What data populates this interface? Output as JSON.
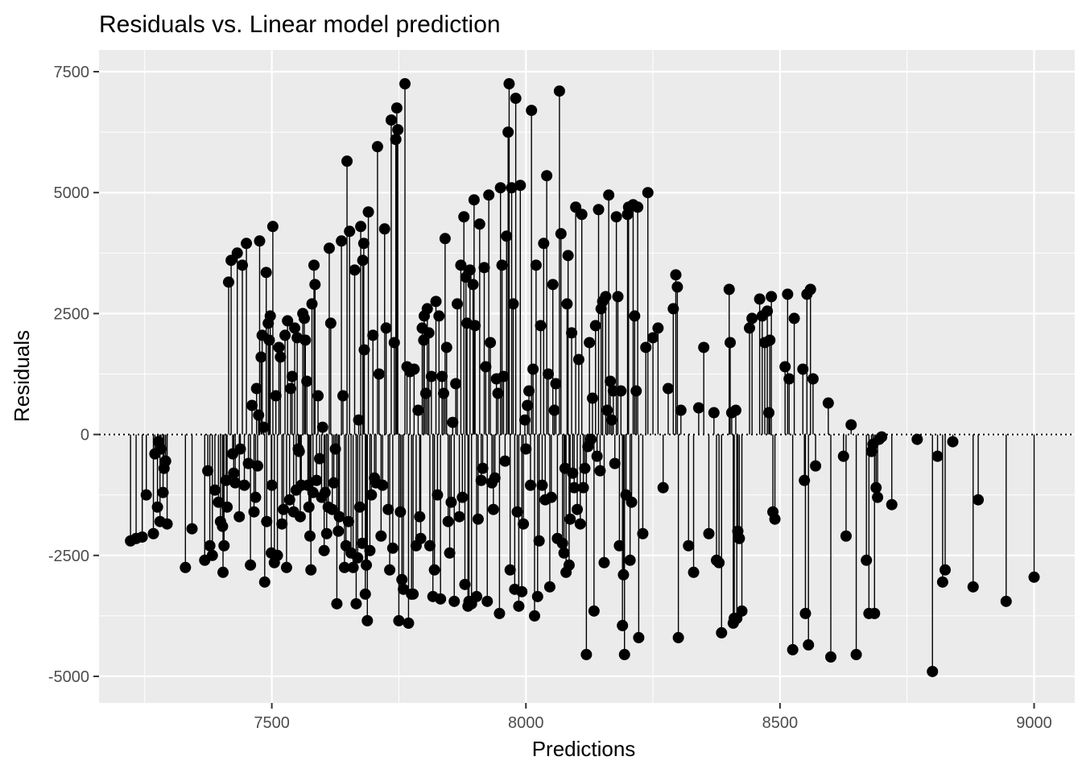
{
  "chart_data": {
    "type": "scatter",
    "title": "Residuals vs. Linear model prediction",
    "xlabel": "Predictions",
    "ylabel": "Residuals",
    "xlim": [
      7160,
      9080
    ],
    "ylim": [
      -5550,
      7950
    ],
    "x_ticks": [
      7500,
      8000,
      8500,
      9000
    ],
    "x_tick_labels": [
      "7500",
      "8000",
      "8500",
      "9000"
    ],
    "y_ticks": [
      7500,
      5000,
      2500,
      0,
      -2500,
      -5000
    ],
    "y_tick_labels": [
      "7500",
      "5000",
      "2500",
      "0",
      "-2500",
      "-5000"
    ],
    "grid": true,
    "reference_line": {
      "y": 0,
      "style": "dotted"
    },
    "mark_style": "lollipop",
    "colors": {
      "panel": "#ebebeb",
      "grid": "#ffffff",
      "points": "#000000"
    },
    "points": [
      [
        7222,
        -2200
      ],
      [
        7233,
        -2150
      ],
      [
        7245,
        -2120
      ],
      [
        7253,
        -1250
      ],
      [
        7267,
        -2050
      ],
      [
        7270,
        -400
      ],
      [
        7275,
        -1500
      ],
      [
        7277,
        -150
      ],
      [
        7280,
        -1800
      ],
      [
        7282,
        -300
      ],
      [
        7286,
        -1200
      ],
      [
        7288,
        -700
      ],
      [
        7291,
        -550
      ],
      [
        7294,
        -1850
      ],
      [
        7330,
        -2750
      ],
      [
        7343,
        -1950
      ],
      [
        7368,
        -2600
      ],
      [
        7374,
        -750
      ],
      [
        7378,
        -2300
      ],
      [
        7383,
        -2500
      ],
      [
        7388,
        -1150
      ],
      [
        7395,
        -1400
      ],
      [
        7399,
        -1800
      ],
      [
        7403,
        -1900
      ],
      [
        7404,
        -2850
      ],
      [
        7406,
        -2300
      ],
      [
        7410,
        -950
      ],
      [
        7412,
        -1500
      ],
      [
        7415,
        3150
      ],
      [
        7420,
        3600
      ],
      [
        7423,
        -400
      ],
      [
        7425,
        -800
      ],
      [
        7428,
        -1000
      ],
      [
        7432,
        3750
      ],
      [
        7436,
        -1700
      ],
      [
        7438,
        -300
      ],
      [
        7442,
        3500
      ],
      [
        7446,
        -1050
      ],
      [
        7450,
        3950
      ],
      [
        7454,
        -600
      ],
      [
        7458,
        -2700
      ],
      [
        7461,
        600
      ],
      [
        7465,
        -1600
      ],
      [
        7468,
        -1300
      ],
      [
        7470,
        950
      ],
      [
        7472,
        -650
      ],
      [
        7474,
        400
      ],
      [
        7476,
        4000
      ],
      [
        7479,
        1600
      ],
      [
        7481,
        2050
      ],
      [
        7484,
        150
      ],
      [
        7486,
        -3050
      ],
      [
        7489,
        3350
      ],
      [
        7490,
        -1800
      ],
      [
        7493,
        2300
      ],
      [
        7495,
        1950
      ],
      [
        7497,
        2450
      ],
      [
        7499,
        -2450
      ],
      [
        7500,
        -1050
      ],
      [
        7502,
        4300
      ],
      [
        7505,
        -2650
      ],
      [
        7508,
        800
      ],
      [
        7511,
        -2500
      ],
      [
        7514,
        1800
      ],
      [
        7517,
        1600
      ],
      [
        7520,
        -1850
      ],
      [
        7523,
        -1550
      ],
      [
        7526,
        2050
      ],
      [
        7529,
        -2750
      ],
      [
        7531,
        2350
      ],
      [
        7535,
        -1350
      ],
      [
        7537,
        950
      ],
      [
        7540,
        1200
      ],
      [
        7543,
        -1600
      ],
      [
        7545,
        2200
      ],
      [
        7548,
        -1150
      ],
      [
        7550,
        2000
      ],
      [
        7552,
        -300
      ],
      [
        7554,
        -350
      ],
      [
        7556,
        -1700
      ],
      [
        7558,
        -1050
      ],
      [
        7561,
        2500
      ],
      [
        7564,
        2400
      ],
      [
        7566,
        1950
      ],
      [
        7569,
        1100
      ],
      [
        7571,
        -1050
      ],
      [
        7573,
        -1500
      ],
      [
        7575,
        -2100
      ],
      [
        7577,
        -2800
      ],
      [
        7579,
        2700
      ],
      [
        7581,
        -1200
      ],
      [
        7583,
        3500
      ],
      [
        7585,
        3100
      ],
      [
        7588,
        -950
      ],
      [
        7591,
        800
      ],
      [
        7594,
        -500
      ],
      [
        7598,
        -1300
      ],
      [
        7600,
        150
      ],
      [
        7603,
        -2400
      ],
      [
        7605,
        -1200
      ],
      [
        7608,
        -2050
      ],
      [
        7611,
        -1500
      ],
      [
        7613,
        3850
      ],
      [
        7616,
        2300
      ],
      [
        7619,
        -1550
      ],
      [
        7622,
        -1000
      ],
      [
        7625,
        -300
      ],
      [
        7628,
        -3500
      ],
      [
        7631,
        -2000
      ],
      [
        7633,
        -1700
      ],
      [
        7637,
        4000
      ],
      [
        7640,
        800
      ],
      [
        7643,
        -2750
      ],
      [
        7646,
        -2300
      ],
      [
        7648,
        5650
      ],
      [
        7651,
        -1800
      ],
      [
        7653,
        4200
      ],
      [
        7656,
        -2450
      ],
      [
        7660,
        -2750
      ],
      [
        7663,
        3400
      ],
      [
        7666,
        -3500
      ],
      [
        7669,
        -2550
      ],
      [
        7671,
        300
      ],
      [
        7673,
        -1500
      ],
      [
        7675,
        4300
      ],
      [
        7678,
        -2250
      ],
      [
        7679,
        3600
      ],
      [
        7681,
        3950
      ],
      [
        7682,
        1750
      ],
      [
        7684,
        -3300
      ],
      [
        7686,
        -2700
      ],
      [
        7688,
        -3850
      ],
      [
        7690,
        4600
      ],
      [
        7693,
        -2400
      ],
      [
        7696,
        -1250
      ],
      [
        7699,
        2050
      ],
      [
        7702,
        -900
      ],
      [
        7705,
        -1000
      ],
      [
        7708,
        5950
      ],
      [
        7711,
        1250
      ],
      [
        7715,
        -2100
      ],
      [
        7718,
        -1050
      ],
      [
        7722,
        4250
      ],
      [
        7725,
        2200
      ],
      [
        7729,
        -1550
      ],
      [
        7732,
        -2800
      ],
      [
        7735,
        6500
      ],
      [
        7738,
        -2350
      ],
      [
        7741,
        1900
      ],
      [
        7744,
        6100
      ],
      [
        7746,
        6750
      ],
      [
        7748,
        6300
      ],
      [
        7750,
        -3850
      ],
      [
        7753,
        -1600
      ],
      [
        7756,
        -3000
      ],
      [
        7759,
        -3200
      ],
      [
        7762,
        7250
      ],
      [
        7766,
        1400
      ],
      [
        7769,
        -3900
      ],
      [
        7772,
        1300
      ],
      [
        7775,
        -3300
      ],
      [
        7778,
        -3300
      ],
      [
        7780,
        1350
      ],
      [
        7784,
        -2300
      ],
      [
        7788,
        500
      ],
      [
        7791,
        -1700
      ],
      [
        7793,
        -2150
      ],
      [
        7796,
        2200
      ],
      [
        7799,
        1950
      ],
      [
        7800,
        2450
      ],
      [
        7803,
        850
      ],
      [
        7806,
        2600
      ],
      [
        7809,
        2100
      ],
      [
        7811,
        -2300
      ],
      [
        7814,
        1200
      ],
      [
        7817,
        -3350
      ],
      [
        7820,
        -2800
      ],
      [
        7823,
        2750
      ],
      [
        7826,
        -1250
      ],
      [
        7829,
        2450
      ],
      [
        7832,
        -3400
      ],
      [
        7835,
        1200
      ],
      [
        7838,
        850
      ],
      [
        7841,
        4050
      ],
      [
        7844,
        1800
      ],
      [
        7847,
        -1800
      ],
      [
        7850,
        -2450
      ],
      [
        7853,
        -1400
      ],
      [
        7856,
        250
      ],
      [
        7859,
        -3450
      ],
      [
        7862,
        1050
      ],
      [
        7865,
        2700
      ],
      [
        7869,
        -1700
      ],
      [
        7872,
        3500
      ],
      [
        7875,
        -1300
      ],
      [
        7878,
        4500
      ],
      [
        7880,
        -3100
      ],
      [
        7882,
        3250
      ],
      [
        7884,
        2300
      ],
      [
        7886,
        -3550
      ],
      [
        7888,
        -3450
      ],
      [
        7890,
        3400
      ],
      [
        7893,
        -3500
      ],
      [
        7896,
        3100
      ],
      [
        7898,
        4850
      ],
      [
        7900,
        2250
      ],
      [
        7903,
        -3350
      ],
      [
        7906,
        -1750
      ],
      [
        7909,
        4350
      ],
      [
        7912,
        -950
      ],
      [
        7915,
        -700
      ],
      [
        7918,
        3450
      ],
      [
        7921,
        1400
      ],
      [
        7924,
        -3450
      ],
      [
        7927,
        4950
      ],
      [
        7930,
        1900
      ],
      [
        7933,
        -1000
      ],
      [
        7936,
        -1550
      ],
      [
        7939,
        -900
      ],
      [
        7942,
        1150
      ],
      [
        7945,
        850
      ],
      [
        7948,
        -3700
      ],
      [
        7950,
        5100
      ],
      [
        7953,
        3500
      ],
      [
        7956,
        1200
      ],
      [
        7959,
        -550
      ],
      [
        7962,
        4100
      ],
      [
        7965,
        6250
      ],
      [
        7967,
        7250
      ],
      [
        7969,
        -2800
      ],
      [
        7972,
        5100
      ],
      [
        7975,
        2700
      ],
      [
        7978,
        -3200
      ],
      [
        7980,
        6950
      ],
      [
        7983,
        -1600
      ],
      [
        7986,
        -3550
      ],
      [
        7989,
        5150
      ],
      [
        7992,
        -3250
      ],
      [
        7995,
        -1850
      ],
      [
        7998,
        300
      ],
      [
        8000,
        -300
      ],
      [
        8003,
        600
      ],
      [
        8006,
        900
      ],
      [
        8009,
        -1050
      ],
      [
        8011,
        6700
      ],
      [
        8014,
        1350
      ],
      [
        8017,
        -3750
      ],
      [
        8020,
        3500
      ],
      [
        8023,
        -3350
      ],
      [
        8026,
        -2200
      ],
      [
        8029,
        2250
      ],
      [
        8032,
        -1050
      ],
      [
        8035,
        3950
      ],
      [
        8038,
        -1350
      ],
      [
        8041,
        5350
      ],
      [
        8044,
        1250
      ],
      [
        8047,
        -3150
      ],
      [
        8050,
        -1300
      ],
      [
        8053,
        3100
      ],
      [
        8056,
        500
      ],
      [
        8059,
        1050
      ],
      [
        8062,
        -2150
      ],
      [
        8066,
        7100
      ],
      [
        8069,
        4150
      ],
      [
        8072,
        -2250
      ],
      [
        8075,
        -2450
      ],
      [
        8077,
        -700
      ],
      [
        8079,
        -2850
      ],
      [
        8081,
        2700
      ],
      [
        8083,
        3700
      ],
      [
        8085,
        -2700
      ],
      [
        8087,
        -1750
      ],
      [
        8090,
        2100
      ],
      [
        8092,
        -800
      ],
      [
        8095,
        -1100
      ],
      [
        8098,
        4700
      ],
      [
        8101,
        -1550
      ],
      [
        8104,
        1550
      ],
      [
        8107,
        -1850
      ],
      [
        8110,
        4550
      ],
      [
        8113,
        -1100
      ],
      [
        8116,
        -700
      ],
      [
        8119,
        -4550
      ],
      [
        8122,
        -250
      ],
      [
        8125,
        1900
      ],
      [
        8128,
        -100
      ],
      [
        8131,
        750
      ],
      [
        8134,
        -3650
      ],
      [
        8137,
        2250
      ],
      [
        8140,
        -450
      ],
      [
        8143,
        4650
      ],
      [
        8146,
        -750
      ],
      [
        8148,
        2600
      ],
      [
        8151,
        2750
      ],
      [
        8154,
        -2650
      ],
      [
        8157,
        2850
      ],
      [
        8160,
        500
      ],
      [
        8163,
        4950
      ],
      [
        8166,
        1100
      ],
      [
        8169,
        300
      ],
      [
        8172,
        900
      ],
      [
        8175,
        -600
      ],
      [
        8178,
        4500
      ],
      [
        8181,
        2850
      ],
      [
        8184,
        -2300
      ],
      [
        8187,
        900
      ],
      [
        8190,
        -3950
      ],
      [
        8192,
        -2900
      ],
      [
        8194,
        -4550
      ],
      [
        8197,
        -1250
      ],
      [
        8200,
        4550
      ],
      [
        8202,
        4700
      ],
      [
        8205,
        -2600
      ],
      [
        8208,
        -1400
      ],
      [
        8211,
        4750
      ],
      [
        8214,
        2450
      ],
      [
        8217,
        900
      ],
      [
        8220,
        4700
      ],
      [
        8222,
        -4200
      ],
      [
        8230,
        -2050
      ],
      [
        8236,
        1800
      ],
      [
        8240,
        5000
      ],
      [
        8250,
        2000
      ],
      [
        8260,
        2200
      ],
      [
        8270,
        -1100
      ],
      [
        8280,
        950
      ],
      [
        8290,
        2600
      ],
      [
        8295,
        3300
      ],
      [
        8298,
        3050
      ],
      [
        8300,
        -4200
      ],
      [
        8305,
        500
      ],
      [
        8320,
        -2300
      ],
      [
        8330,
        -2850
      ],
      [
        8340,
        550
      ],
      [
        8350,
        1800
      ],
      [
        8360,
        -2050
      ],
      [
        8370,
        450
      ],
      [
        8375,
        -2600
      ],
      [
        8380,
        -2650
      ],
      [
        8385,
        -4100
      ],
      [
        8400,
        3000
      ],
      [
        8402,
        1900
      ],
      [
        8405,
        450
      ],
      [
        8408,
        -3900
      ],
      [
        8410,
        -3800
      ],
      [
        8413,
        500
      ],
      [
        8415,
        -3800
      ],
      [
        8417,
        -2000
      ],
      [
        8420,
        -2150
      ],
      [
        8425,
        -3650
      ],
      [
        8440,
        2200
      ],
      [
        8445,
        2400
      ],
      [
        8460,
        2800
      ],
      [
        8465,
        2450
      ],
      [
        8470,
        1900
      ],
      [
        8475,
        2550
      ],
      [
        8478,
        450
      ],
      [
        8480,
        1950
      ],
      [
        8483,
        2850
      ],
      [
        8486,
        -1600
      ],
      [
        8490,
        -1750
      ],
      [
        8510,
        1400
      ],
      [
        8515,
        2900
      ],
      [
        8518,
        1150
      ],
      [
        8525,
        -4450
      ],
      [
        8528,
        2400
      ],
      [
        8545,
        1350
      ],
      [
        8548,
        -950
      ],
      [
        8550,
        -3700
      ],
      [
        8553,
        2900
      ],
      [
        8556,
        -4350
      ],
      [
        8560,
        3000
      ],
      [
        8565,
        1150
      ],
      [
        8570,
        -650
      ],
      [
        8595,
        650
      ],
      [
        8600,
        -4600
      ],
      [
        8625,
        -450
      ],
      [
        8630,
        -2100
      ],
      [
        8640,
        200
      ],
      [
        8650,
        -4550
      ],
      [
        8670,
        -2600
      ],
      [
        8675,
        -3700
      ],
      [
        8680,
        -350
      ],
      [
        8683,
        -200
      ],
      [
        8686,
        -3700
      ],
      [
        8689,
        -1100
      ],
      [
        8692,
        -1300
      ],
      [
        8695,
        -100
      ],
      [
        8700,
        -50
      ],
      [
        8720,
        -1450
      ],
      [
        8770,
        -100
      ],
      [
        8800,
        -4900
      ],
      [
        8810,
        -450
      ],
      [
        8820,
        -3050
      ],
      [
        8825,
        -2800
      ],
      [
        8840,
        -150
      ],
      [
        8880,
        -3150
      ],
      [
        8890,
        -1350
      ],
      [
        8945,
        -3450
      ],
      [
        9000,
        -2950
      ]
    ]
  }
}
